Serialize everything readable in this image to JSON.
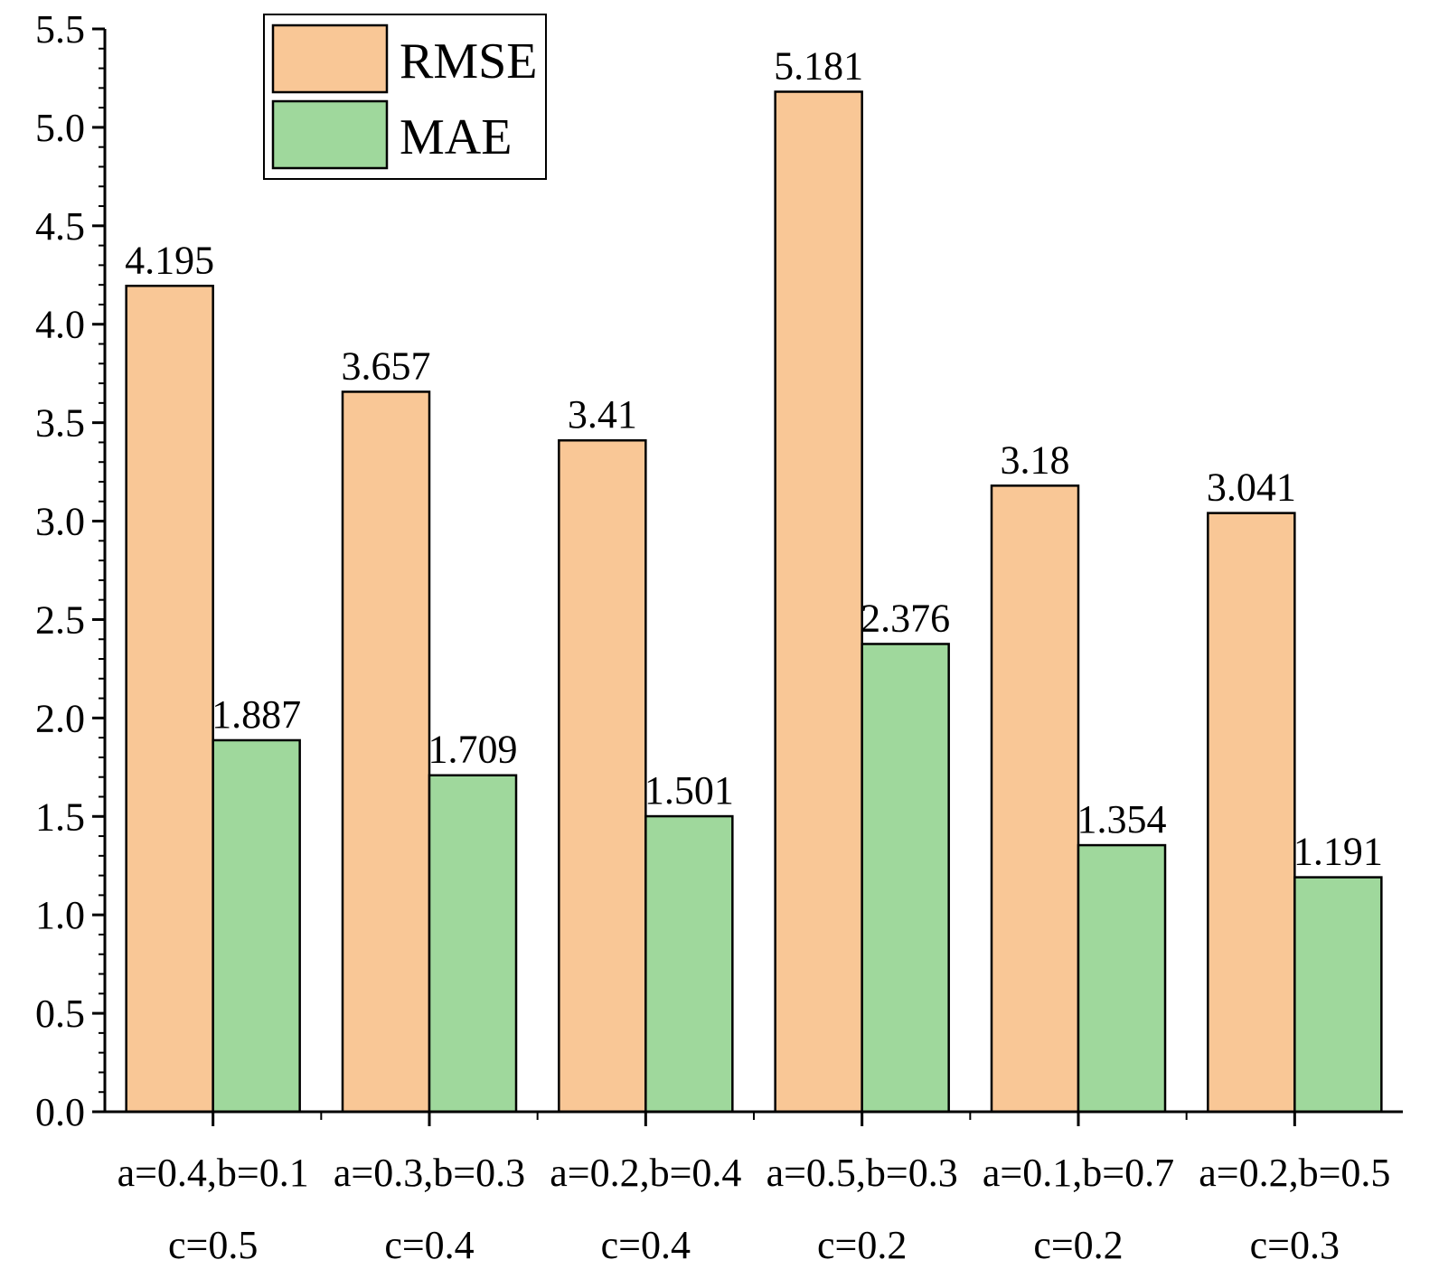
{
  "chart_data": {
    "type": "bar",
    "title": "",
    "xlabel": "",
    "ylabel": "",
    "ylim": [
      0,
      5.5
    ],
    "yticks": [
      "0.0",
      "0.5",
      "1.0",
      "1.5",
      "2.0",
      "2.5",
      "3.0",
      "3.5",
      "4.0",
      "4.5",
      "5.0",
      "5.5"
    ],
    "grid": false,
    "legend_position": "top-left",
    "categories": [
      {
        "line1": "a=0.4,b=0.1",
        "line2": "c=0.5"
      },
      {
        "line1": "a=0.3,b=0.3",
        "line2": "c=0.4"
      },
      {
        "line1": "a=0.2,b=0.4",
        "line2": "c=0.4"
      },
      {
        "line1": "a=0.5,b=0.3",
        "line2": "c=0.2"
      },
      {
        "line1": "a=0.1,b=0.7",
        "line2": "c=0.2"
      },
      {
        "line1": "a=0.2,b=0.5",
        "line2": "c=0.3"
      }
    ],
    "series": [
      {
        "name": "RMSE",
        "color": "#F9C796",
        "values": [
          4.195,
          3.657,
          3.41,
          5.181,
          3.18,
          3.041
        ],
        "labels": [
          "4.195",
          "3.657",
          "3.41",
          "5.181",
          "3.18",
          "3.041"
        ]
      },
      {
        "name": "MAE",
        "color": "#9FD89C",
        "values": [
          1.887,
          1.709,
          1.501,
          2.376,
          1.354,
          1.191
        ],
        "labels": [
          "1.887",
          "1.709",
          "1.501",
          "2.376",
          "1.354",
          "1.191"
        ]
      }
    ]
  }
}
